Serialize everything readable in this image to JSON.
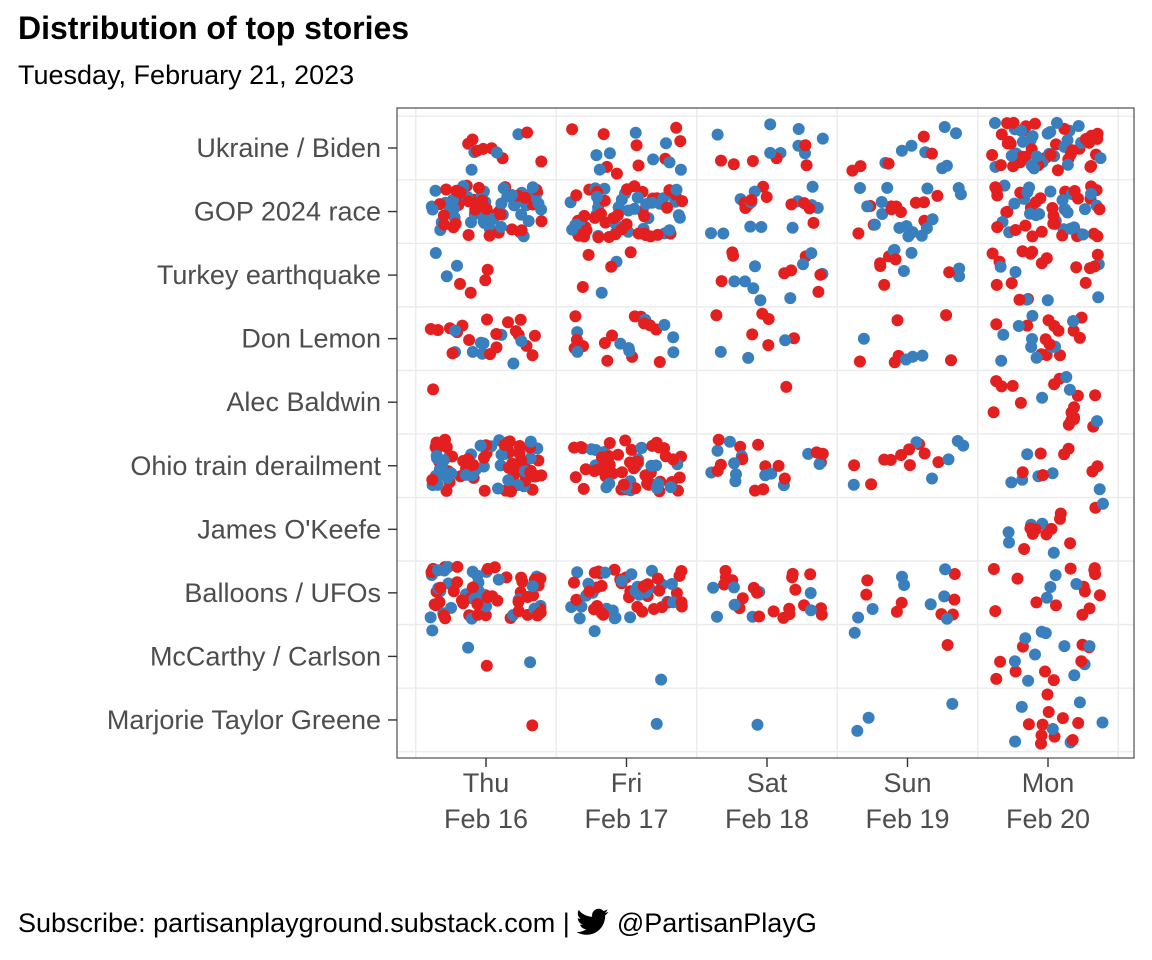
{
  "header": {
    "title": "Distribution of top stories",
    "subtitle": "Tuesday, February 21, 2023"
  },
  "footer": {
    "subscribe_text": "Subscribe: partisanplayground.substack.com |",
    "handle": "@PartisanPlayG",
    "bird_icon": "twitter-bird-icon"
  },
  "colors": {
    "blue": "#3a7fbd",
    "red": "#e3201f",
    "panel_border": "#4d4d4d",
    "grid": "#ebebeb"
  },
  "chart_data": {
    "type": "scatter",
    "title": "Distribution of top stories",
    "subtitle": "Tuesday, February 21, 2023",
    "xlabel": "",
    "ylabel": "",
    "grid": true,
    "legend": "none",
    "x_categories": [
      {
        "day": "Thu",
        "date": "Feb 16"
      },
      {
        "day": "Fri",
        "date": "Feb 17"
      },
      {
        "day": "Sat",
        "date": "Feb 18"
      },
      {
        "day": "Sun",
        "date": "Feb 19"
      },
      {
        "day": "Mon",
        "date": "Feb 20"
      }
    ],
    "y_categories": [
      "Ukraine / Biden",
      "GOP 2024 race",
      "Turkey earthquake",
      "Don Lemon",
      "Alec Baldwin",
      "Ohio train derailment",
      "James O'Keefe",
      "Balloons / UFOs",
      "McCarthy / Carlson",
      "Marjorie Taylor Greene"
    ],
    "point_counts": {
      "Ukraine / Biden": [
        [
          4,
          8
        ],
        [
          8,
          9
        ],
        [
          8,
          6
        ],
        [
          8,
          5
        ],
        [
          26,
          34
        ]
      ],
      "GOP 2024 race": [
        [
          44,
          38
        ],
        [
          34,
          38
        ],
        [
          12,
          10
        ],
        [
          16,
          12
        ],
        [
          24,
          30
        ]
      ],
      "Turkey earthquake": [
        [
          3,
          4
        ],
        [
          2,
          4
        ],
        [
          9,
          8
        ],
        [
          6,
          6
        ],
        [
          6,
          16
        ]
      ],
      "Don Lemon": [
        [
          9,
          18
        ],
        [
          9,
          14
        ],
        [
          3,
          6
        ],
        [
          4,
          6
        ],
        [
          10,
          14
        ]
      ],
      "Alec Baldwin": [
        [
          0,
          1
        ],
        [
          0,
          0
        ],
        [
          0,
          1
        ],
        [
          0,
          0
        ],
        [
          4,
          16
        ]
      ],
      "Ohio train derailment": [
        [
          36,
          50
        ],
        [
          20,
          48
        ],
        [
          12,
          14
        ],
        [
          6,
          10
        ],
        [
          6,
          7
        ]
      ],
      "James O'Keefe": [
        [
          0,
          0
        ],
        [
          0,
          0
        ],
        [
          0,
          0
        ],
        [
          0,
          0
        ],
        [
          6,
          10
        ]
      ],
      "Balloons / UFOs": [
        [
          30,
          44
        ],
        [
          26,
          36
        ],
        [
          8,
          20
        ],
        [
          8,
          8
        ],
        [
          4,
          14
        ]
      ],
      "McCarthy / Carlson": [
        [
          3,
          1
        ],
        [
          2,
          0
        ],
        [
          0,
          0
        ],
        [
          1,
          1
        ],
        [
          10,
          9
        ]
      ],
      "Marjorie Taylor Greene": [
        [
          0,
          1
        ],
        [
          1,
          0
        ],
        [
          1,
          0
        ],
        [
          3,
          0
        ],
        [
          6,
          10
        ]
      ]
    },
    "point_counts_order": [
      "blue",
      "red"
    ]
  }
}
